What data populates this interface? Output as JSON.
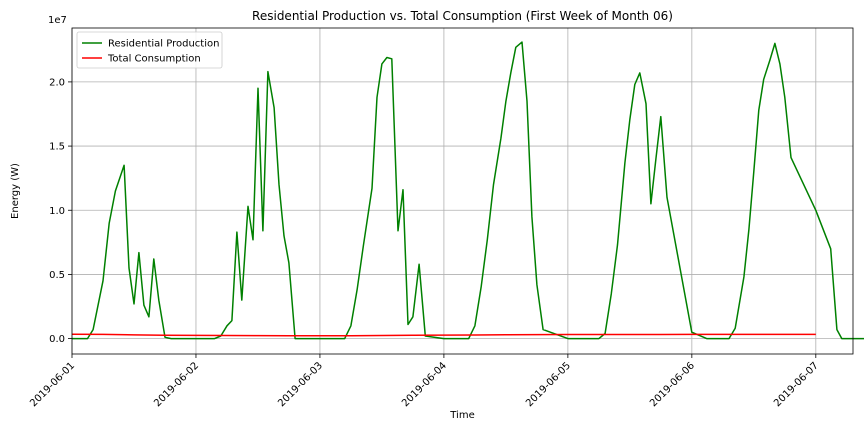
{
  "chart_data": {
    "type": "line",
    "title": "Residential Production vs. Total Consumption (First Week of Month 06)",
    "xlabel": "Time",
    "ylabel": "Energy (W)",
    "y_scale_label": "1e7",
    "xlim": [
      0,
      6.3
    ],
    "ylim": [
      -0.12,
      2.42
    ],
    "x_tick_values": [
      0,
      1,
      2,
      3,
      4,
      5,
      6
    ],
    "x_tick_labels": [
      "2019-06-01",
      "2019-06-02",
      "2019-06-03",
      "2019-06-04",
      "2019-06-05",
      "2019-06-06",
      "2019-06-07"
    ],
    "y_ticks": [
      0.0,
      0.5,
      1.0,
      1.5,
      2.0
    ],
    "y_tick_labels": [
      "0.0",
      "0.5",
      "1.0",
      "1.5",
      "2.0"
    ],
    "grid": true,
    "legend_position": "upper-left",
    "series": [
      {
        "name": "Residential Production",
        "color": "#008000",
        "x": [
          0,
          0.125,
          0.17,
          0.25,
          0.3,
          0.35,
          0.42,
          0.46,
          0.5,
          0.54,
          0.58,
          0.62,
          0.66,
          0.7,
          0.75,
          0.8,
          1.0,
          1.15,
          1.2,
          1.25,
          1.29,
          1.33,
          1.37,
          1.42,
          1.46,
          1.5,
          1.54,
          1.58,
          1.63,
          1.67,
          1.71,
          1.75,
          1.8,
          2.0,
          2.1,
          2.15,
          2.2,
          2.25,
          2.3,
          2.35,
          2.42,
          2.46,
          2.5,
          2.54,
          2.58,
          2.63,
          2.67,
          2.71,
          2.75,
          2.8,
          2.85,
          3.0,
          3.1,
          3.15,
          3.2,
          3.25,
          3.3,
          3.35,
          3.4,
          3.46,
          3.5,
          3.54,
          3.58,
          3.63,
          3.67,
          3.71,
          3.75,
          3.8,
          4.0,
          4.12,
          4.17,
          4.21,
          4.25,
          4.3,
          4.35,
          4.4,
          4.46,
          4.5,
          4.54,
          4.58,
          4.63,
          4.67,
          4.71,
          4.75,
          4.8,
          5.0,
          5.12,
          5.17,
          5.21,
          5.25,
          5.3,
          5.35,
          5.42,
          5.46,
          5.5,
          5.54,
          5.58,
          5.63,
          5.67,
          5.71,
          5.75,
          5.8,
          6.0,
          6.12,
          6.17,
          6.21,
          6.25,
          6.3,
          6.35,
          6.42,
          6.46,
          6.5,
          6.54,
          6.58,
          6.63,
          6.67,
          6.71,
          6.75,
          6.8,
          7.0
        ],
        "y": [
          0.0,
          0.0,
          0.07,
          0.45,
          0.9,
          1.15,
          1.35,
          0.55,
          0.27,
          0.67,
          0.26,
          0.17,
          0.62,
          0.3,
          0.01,
          0.0,
          0.0,
          0.0,
          0.02,
          0.1,
          0.14,
          0.83,
          0.3,
          1.03,
          0.77,
          1.95,
          0.84,
          2.08,
          1.8,
          1.2,
          0.8,
          0.59,
          0.0,
          0.0,
          0.0,
          0.0,
          0.0,
          0.1,
          0.38,
          0.72,
          1.17,
          1.88,
          2.14,
          2.19,
          2.18,
          0.84,
          1.16,
          0.11,
          0.17,
          0.58,
          0.02,
          0.0,
          0.0,
          0.0,
          0.0,
          0.1,
          0.4,
          0.77,
          1.2,
          1.56,
          1.85,
          2.07,
          2.27,
          2.31,
          1.85,
          0.95,
          0.42,
          0.07,
          0.0,
          0.0,
          0.0,
          0.0,
          0.0,
          0.04,
          0.35,
          0.73,
          1.37,
          1.71,
          1.98,
          2.07,
          1.83,
          1.05,
          1.4,
          1.73,
          1.1,
          0.05,
          0.0,
          0.0,
          0.0,
          0.0,
          0.0,
          0.08,
          0.48,
          0.85,
          1.3,
          1.78,
          2.02,
          2.17,
          2.3,
          2.14,
          1.88,
          1.41,
          1.0,
          0.7,
          0.07,
          0.0,
          0.0,
          0.0,
          0.0,
          0.0,
          0.0,
          0.0,
          0.0,
          0.0,
          0.0,
          0.0,
          0.0,
          0.0,
          0.0,
          0.0
        ]
      },
      {
        "name": "Total Consumption",
        "color": "#ff0000",
        "x": [
          0,
          0.25,
          0.5,
          0.75,
          1.0,
          1.25,
          1.5,
          1.75,
          2.0,
          2.25,
          2.5,
          2.75,
          3.0,
          3.25,
          3.5,
          3.75,
          4.0,
          4.25,
          4.5,
          4.75,
          5.0,
          5.25,
          5.5,
          5.75,
          6.0
        ],
        "y": [
          0.034,
          0.033,
          0.029,
          0.026,
          0.025,
          0.024,
          0.023,
          0.022,
          0.022,
          0.022,
          0.024,
          0.026,
          0.027,
          0.028,
          0.03,
          0.031,
          0.032,
          0.032,
          0.032,
          0.032,
          0.033,
          0.033,
          0.033,
          0.033,
          0.033
        ]
      }
    ]
  }
}
